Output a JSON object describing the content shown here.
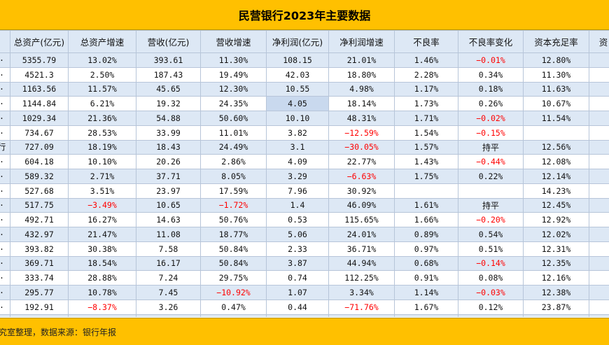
{
  "title": "民营银行2023年主要数据",
  "headers": [
    "",
    "总资产(亿元)",
    "总资产增速",
    "营收(亿元)",
    "营收增速",
    "净利润(亿元)",
    "净利润增速",
    "不良率",
    "不良率变化",
    "资本充足率",
    "资"
  ],
  "rows": [
    [
      "·",
      "5355.79",
      "13.02%",
      "393.61",
      "11.30%",
      "108.15",
      "21.01%",
      "1.46%",
      "−0.01%",
      "12.80%",
      ""
    ],
    [
      "·",
      "4521.3",
      "2.50%",
      "187.43",
      "19.49%",
      "42.03",
      "18.80%",
      "2.28%",
      "0.34%",
      "11.30%",
      ""
    ],
    [
      "·",
      "1163.56",
      "11.57%",
      "45.65",
      "12.30%",
      "10.55",
      "4.98%",
      "1.17%",
      "0.18%",
      "11.63%",
      ""
    ],
    [
      "·",
      "1144.84",
      "6.21%",
      "19.32",
      "24.35%",
      "4.05",
      "18.14%",
      "1.73%",
      "0.26%",
      "10.67%",
      ""
    ],
    [
      "·",
      "1029.34",
      "21.36%",
      "54.88",
      "50.60%",
      "10.10",
      "48.31%",
      "1.71%",
      "−0.02%",
      "11.54%",
      ""
    ],
    [
      "·",
      "734.67",
      "28.53%",
      "33.99",
      "11.01%",
      "3.82",
      "−12.59%",
      "1.54%",
      "−0.15%",
      "",
      ""
    ],
    [
      "行",
      "727.09",
      "18.19%",
      "18.43",
      "24.49%",
      "3.1",
      "−30.05%",
      "1.57%",
      "持平",
      "12.56%",
      ""
    ],
    [
      "·",
      "604.18",
      "10.10%",
      "20.26",
      "2.86%",
      "4.09",
      "22.77%",
      "1.43%",
      "−0.44%",
      "12.08%",
      ""
    ],
    [
      "·",
      "589.32",
      "2.71%",
      "37.71",
      "8.05%",
      "3.29",
      "−6.63%",
      "1.75%",
      "0.22%",
      "12.14%",
      ""
    ],
    [
      "·",
      "527.68",
      "3.51%",
      "23.97",
      "17.59%",
      "7.96",
      "30.92%",
      "",
      "",
      "14.23%",
      ""
    ],
    [
      "·",
      "517.75",
      "−3.49%",
      "10.65",
      "−1.72%",
      "1.4",
      "46.09%",
      "1.61%",
      "持平",
      "12.45%",
      ""
    ],
    [
      "·",
      "492.71",
      "16.27%",
      "14.63",
      "50.76%",
      "0.53",
      "115.65%",
      "1.66%",
      "−0.20%",
      "12.92%",
      ""
    ],
    [
      "·",
      "432.97",
      "21.47%",
      "11.08",
      "18.77%",
      "5.06",
      "24.01%",
      "0.89%",
      "0.54%",
      "12.02%",
      ""
    ],
    [
      "·",
      "393.82",
      "30.38%",
      "7.58",
      "50.84%",
      "2.33",
      "36.71%",
      "0.97%",
      "0.51%",
      "12.31%",
      ""
    ],
    [
      "·",
      "369.71",
      "18.54%",
      "16.17",
      "50.84%",
      "3.87",
      "44.94%",
      "0.68%",
      "−0.14%",
      "12.35%",
      ""
    ],
    [
      "·",
      "333.74",
      "28.88%",
      "7.24",
      "29.75%",
      "0.74",
      "112.25%",
      "0.91%",
      "0.08%",
      "12.16%",
      ""
    ],
    [
      "·",
      "295.77",
      "10.78%",
      "7.45",
      "−10.92%",
      "1.07",
      "3.34%",
      "1.14%",
      "−0.03%",
      "12.38%",
      ""
    ],
    [
      "·",
      "192.91",
      "−8.37%",
      "3.26",
      "0.47%",
      "0.44",
      "−71.76%",
      "1.67%",
      "0.12%",
      "23.87%",
      ""
    ],
    [
      "",
      "",
      "",
      "",
      "",
      "",
      "",
      "",
      "",
      "",
      ""
    ]
  ],
  "negative_color": "#ff0000",
  "footer": "究室整理，数据来源：银行年报"
}
